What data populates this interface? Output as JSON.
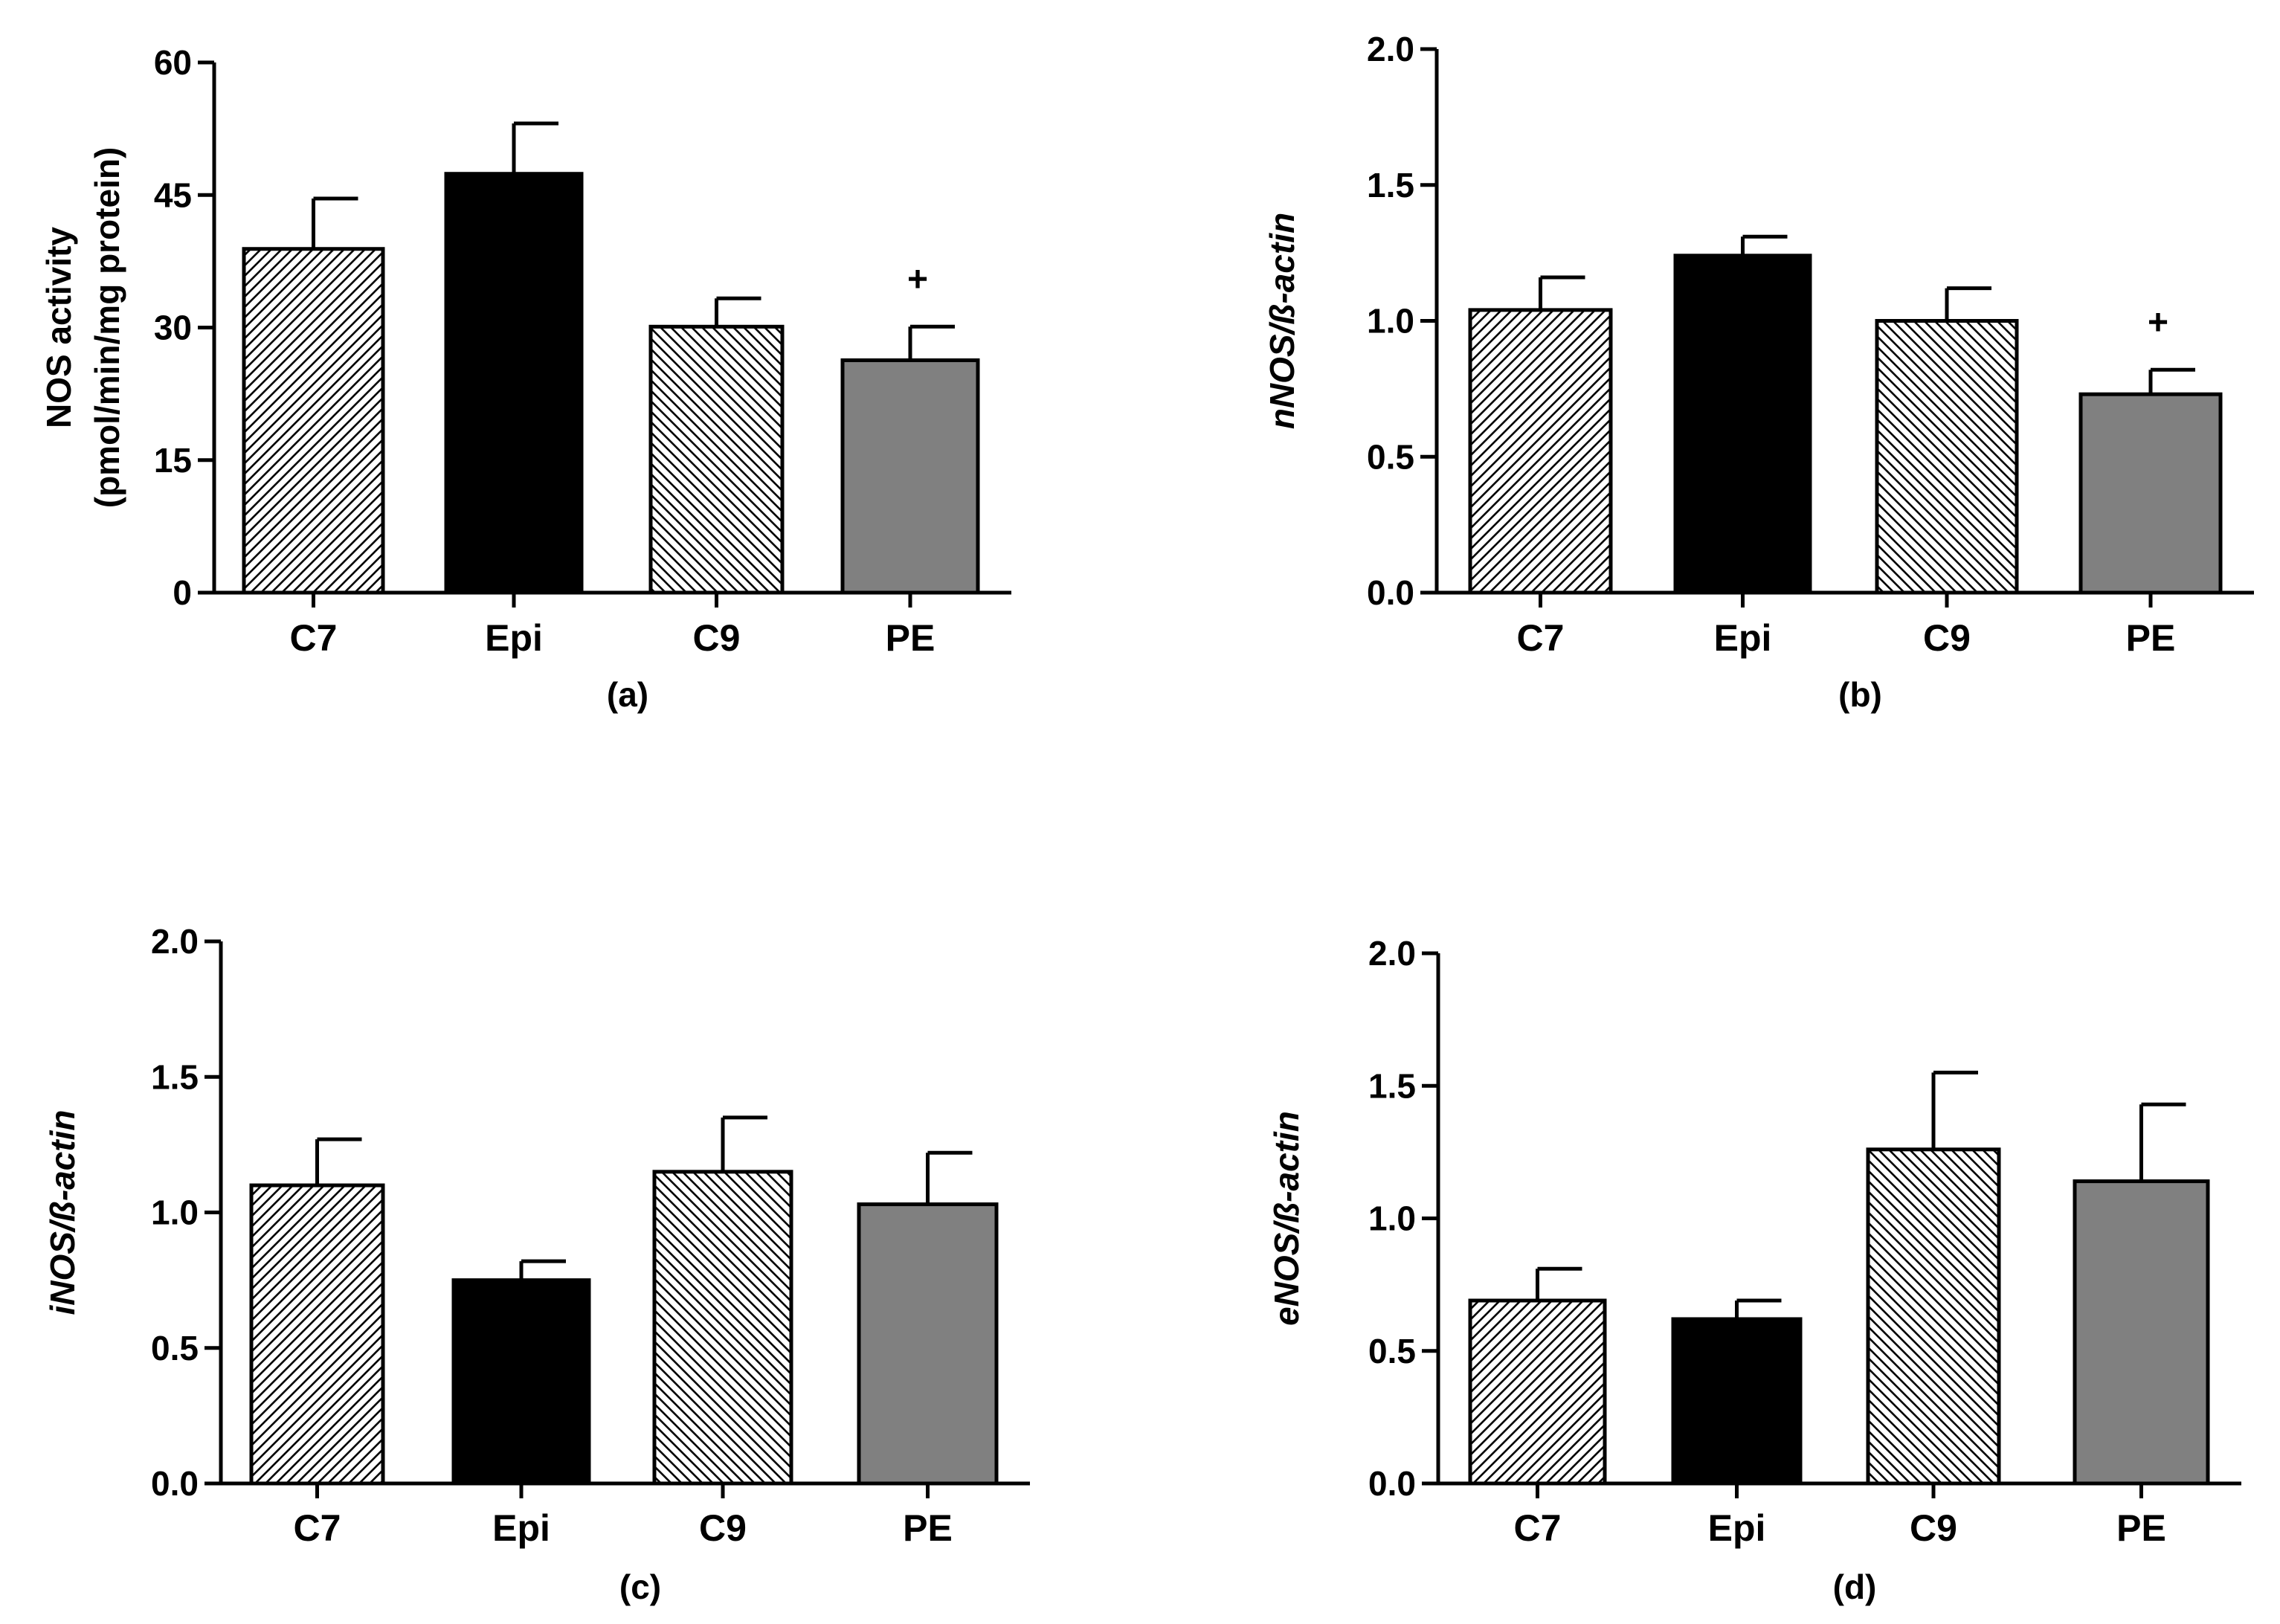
{
  "chart_data": [
    {
      "type": "bar",
      "panel_label": "(a)",
      "categories": [
        "C7",
        "Epi",
        "C9",
        "PE"
      ],
      "values": [
        38.9,
        47.4,
        30.1,
        26.3
      ],
      "errors": [
        5.7,
        5.7,
        3.2,
        3.8
      ],
      "annotations": [
        "",
        "",
        "",
        "+"
      ],
      "ylabel": [
        "NOS activity",
        "(pmol/min/mg protein)"
      ],
      "ylabel_italic": false,
      "ylim": [
        0,
        60
      ],
      "yticks": [
        0,
        15,
        30,
        45,
        60
      ],
      "ytick_labels": [
        "0",
        "15",
        "30",
        "45",
        "60"
      ]
    },
    {
      "type": "bar",
      "panel_label": "(b)",
      "categories": [
        "C7",
        "Epi",
        "C9",
        "PE"
      ],
      "values": [
        1.04,
        1.24,
        1.0,
        0.73
      ],
      "errors": [
        0.12,
        0.07,
        0.12,
        0.09
      ],
      "annotations": [
        "",
        "",
        "",
        "+"
      ],
      "ylabel": [
        "nNOS/ß-actin"
      ],
      "ylabel_italic": true,
      "ylim": [
        0,
        2.0
      ],
      "yticks": [
        0,
        0.5,
        1.0,
        1.5,
        2.0
      ],
      "ytick_labels": [
        "0.0",
        "0.5",
        "1.0",
        "1.5",
        "2.0"
      ]
    },
    {
      "type": "bar",
      "panel_label": "(c)",
      "categories": [
        "C7",
        "Epi",
        "C9",
        "PE"
      ],
      "values": [
        1.1,
        0.75,
        1.15,
        1.03
      ],
      "errors": [
        0.17,
        0.07,
        0.2,
        0.19
      ],
      "annotations": [
        "",
        "",
        "",
        ""
      ],
      "ylabel": [
        "iNOS/ß-actin"
      ],
      "ylabel_italic": true,
      "ylim": [
        0,
        2.0
      ],
      "yticks": [
        0,
        0.5,
        1.0,
        1.5,
        2.0
      ],
      "ytick_labels": [
        "0.0",
        "0.5",
        "1.0",
        "1.5",
        "2.0"
      ]
    },
    {
      "type": "bar",
      "panel_label": "(d)",
      "categories": [
        "C7",
        "Epi",
        "C9",
        "PE"
      ],
      "values": [
        0.69,
        0.62,
        1.26,
        1.14
      ],
      "errors": [
        0.12,
        0.07,
        0.29,
        0.29
      ],
      "annotations": [
        "",
        "",
        "",
        ""
      ],
      "ylabel": [
        "eNOS/ß-actin"
      ],
      "ylabel_italic": true,
      "ylim": [
        0,
        2.0
      ],
      "yticks": [
        0,
        0.5,
        1.0,
        1.5,
        2.0
      ],
      "ytick_labels": [
        "0.0",
        "0.5",
        "1.0",
        "1.5",
        "2.0"
      ]
    }
  ],
  "bar_styles": [
    {
      "category": "C7",
      "fill": "hatch-forward",
      "color": "#000000"
    },
    {
      "category": "Epi",
      "fill": "solid",
      "color": "#000000"
    },
    {
      "category": "C9",
      "fill": "hatch-backward",
      "color": "#000000"
    },
    {
      "category": "PE",
      "fill": "solid",
      "color": "#808080"
    }
  ]
}
